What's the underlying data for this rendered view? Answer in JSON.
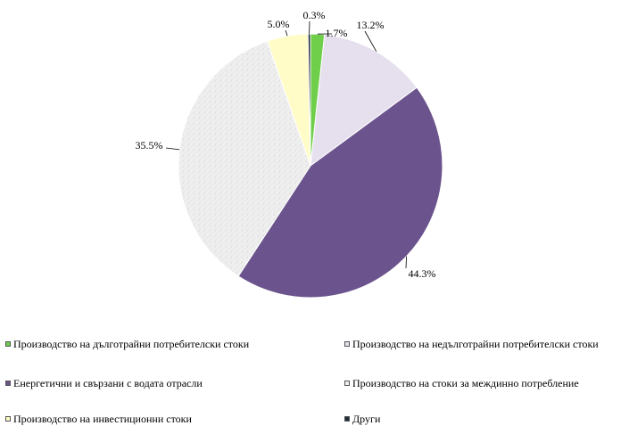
{
  "chart_data": {
    "type": "pie",
    "title": "",
    "series": [
      {
        "name": "Производство на дълготрайни потребителски стоки",
        "value": 1.7,
        "label": "1.7%",
        "color": "#6fcf4a"
      },
      {
        "name": "Производство на недълготрайни потребителски стоки",
        "value": 13.2,
        "label": "13.2%",
        "color": "#e6e0ee"
      },
      {
        "name": "Енергетични и свързани с водата отрасли",
        "value": 44.3,
        "label": "44.3%",
        "color": "#6b548d"
      },
      {
        "name": "Производство на стоки за междинно потребление",
        "value": 35.5,
        "label": "35.5%",
        "color": "#efefef"
      },
      {
        "name": "Производство на инвестиционни стоки",
        "value": 5.0,
        "label": "5.0%",
        "color": "#fffcc8"
      },
      {
        "name": "Други",
        "value": 0.3,
        "label": "0.3%",
        "color": "#1f2d3a"
      }
    ],
    "legend_position": "bottom"
  }
}
